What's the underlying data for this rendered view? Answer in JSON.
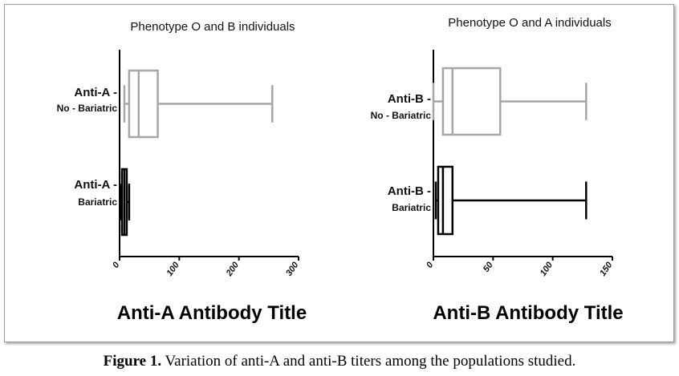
{
  "chart_data": [
    {
      "type": "box",
      "title": "Phenotype O and B individuals",
      "xlabel": "Anti-A Antibody Title",
      "xlim": [
        0,
        300
      ],
      "xticks": [
        "0",
        "100",
        "200",
        "300"
      ],
      "series": [
        {
          "label_main": "Anti-A -",
          "label_sub": "No - Bariatric",
          "min": 8,
          "q1": 16,
          "median": 32,
          "q3": 64,
          "max": 256,
          "color": "#a6a6a6"
        },
        {
          "label_main": "Anti-A -",
          "label_sub": "Bariatric",
          "min": 2,
          "q1": 4,
          "median": 8,
          "q3": 12,
          "max": 16,
          "color": "#000000"
        }
      ]
    },
    {
      "type": "box",
      "title": "Phenotype O and A individuals",
      "xlabel": "Anti-B Antibody Title",
      "xlim": [
        0,
        150
      ],
      "xticks": [
        "0",
        "50",
        "100",
        "150"
      ],
      "series": [
        {
          "label_main": "Anti-B -",
          "label_sub": "No - Bariatric",
          "min": 0,
          "q1": 8,
          "median": 16,
          "q3": 56,
          "max": 128,
          "color": "#a6a6a6"
        },
        {
          "label_main": "Anti-B -",
          "label_sub": "Bariatric",
          "min": 2,
          "q1": 4,
          "median": 8,
          "q3": 16,
          "max": 128,
          "color": "#000000"
        }
      ]
    }
  ],
  "caption": {
    "label": "Figure 1.",
    "text": " Variation of anti-A and anti-B titers among the populations studied."
  }
}
